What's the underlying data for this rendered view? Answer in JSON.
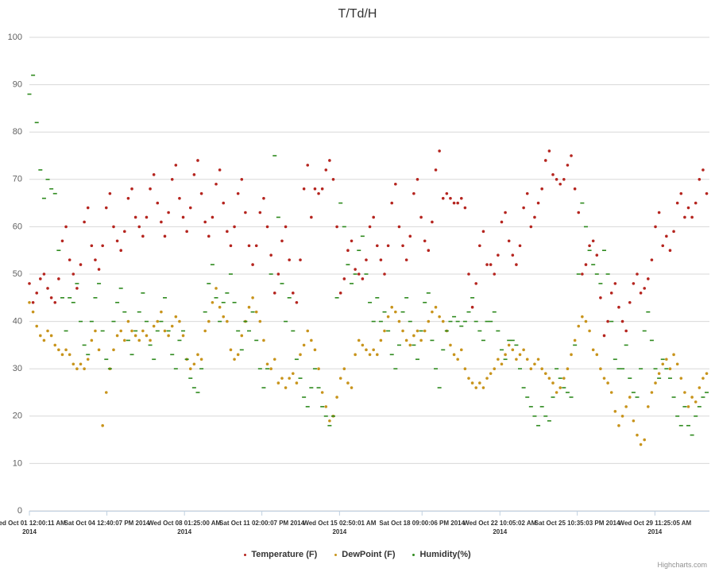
{
  "chart_data": {
    "type": "scatter",
    "title": "T/Td/H",
    "x": [
      "2014-10-01 00:00",
      "2014-10-01 04:00",
      "2014-10-01 08:00",
      "2014-10-01 12:00",
      "2014-10-01 16:00",
      "2014-10-01 20:00",
      "2014-10-02 00:00",
      "2014-10-02 04:00",
      "2014-10-02 08:00",
      "2014-10-02 12:00",
      "2014-10-02 16:00",
      "2014-10-02 20:00",
      "2014-10-03 00:00",
      "2014-10-03 04:00",
      "2014-10-03 08:00",
      "2014-10-03 12:00",
      "2014-10-03 16:00",
      "2014-10-03 20:00",
      "2014-10-04 00:00",
      "2014-10-04 04:00",
      "2014-10-04 08:00",
      "2014-10-04 12:00",
      "2014-10-04 16:00",
      "2014-10-04 20:00",
      "2014-10-05 00:00",
      "2014-10-05 04:00",
      "2014-10-05 08:00",
      "2014-10-05 12:00",
      "2014-10-05 16:00",
      "2014-10-05 20:00",
      "2014-10-06 00:00",
      "2014-10-06 04:00",
      "2014-10-06 08:00",
      "2014-10-06 12:00",
      "2014-10-06 16:00",
      "2014-10-06 20:00",
      "2014-10-07 00:00",
      "2014-10-07 04:00",
      "2014-10-07 08:00",
      "2014-10-07 12:00",
      "2014-10-07 16:00",
      "2014-10-07 20:00",
      "2014-10-08 00:00",
      "2014-10-08 04:00",
      "2014-10-08 08:00",
      "2014-10-08 12:00",
      "2014-10-08 16:00",
      "2014-10-08 20:00",
      "2014-10-09 00:00",
      "2014-10-09 04:00",
      "2014-10-09 08:00",
      "2014-10-09 12:00",
      "2014-10-09 16:00",
      "2014-10-09 20:00",
      "2014-10-10 00:00",
      "2014-10-10 04:00",
      "2014-10-10 08:00",
      "2014-10-10 12:00",
      "2014-10-10 16:00",
      "2014-10-10 20:00",
      "2014-10-11 00:00",
      "2014-10-11 04:00",
      "2014-10-11 08:00",
      "2014-10-11 12:00",
      "2014-10-11 16:00",
      "2014-10-11 20:00",
      "2014-10-12 00:00",
      "2014-10-12 04:00",
      "2014-10-12 08:00",
      "2014-10-12 12:00",
      "2014-10-12 16:00",
      "2014-10-12 20:00",
      "2014-10-13 00:00",
      "2014-10-13 04:00",
      "2014-10-13 08:00",
      "2014-10-13 12:00",
      "2014-10-13 16:00",
      "2014-10-13 20:00",
      "2014-10-14 00:00",
      "2014-10-14 04:00",
      "2014-10-14 08:00",
      "2014-10-14 12:00",
      "2014-10-14 16:00",
      "2014-10-14 20:00",
      "2014-10-15 00:00",
      "2014-10-15 04:00",
      "2014-10-15 08:00",
      "2014-10-15 12:00",
      "2014-10-15 16:00",
      "2014-10-15 20:00",
      "2014-10-16 00:00",
      "2014-10-16 04:00",
      "2014-10-16 08:00",
      "2014-10-16 12:00",
      "2014-10-16 16:00",
      "2014-10-16 20:00",
      "2014-10-17 00:00",
      "2014-10-17 04:00",
      "2014-10-17 08:00",
      "2014-10-17 12:00",
      "2014-10-17 16:00",
      "2014-10-17 20:00",
      "2014-10-18 00:00",
      "2014-10-18 04:00",
      "2014-10-18 08:00",
      "2014-10-18 12:00",
      "2014-10-18 16:00",
      "2014-10-18 20:00",
      "2014-10-19 00:00",
      "2014-10-19 04:00",
      "2014-10-19 08:00",
      "2014-10-19 12:00",
      "2014-10-19 16:00",
      "2014-10-19 20:00",
      "2014-10-20 00:00",
      "2014-10-20 04:00",
      "2014-10-20 08:00",
      "2014-10-20 12:00",
      "2014-10-20 16:00",
      "2014-10-20 20:00",
      "2014-10-21 00:00",
      "2014-10-21 04:00",
      "2014-10-21 08:00",
      "2014-10-21 12:00",
      "2014-10-21 16:00",
      "2014-10-21 20:00",
      "2014-10-22 00:00",
      "2014-10-22 04:00",
      "2014-10-22 08:00",
      "2014-10-22 12:00",
      "2014-10-22 16:00",
      "2014-10-22 20:00",
      "2014-10-23 00:00",
      "2014-10-23 04:00",
      "2014-10-23 08:00",
      "2014-10-23 12:00",
      "2014-10-23 16:00",
      "2014-10-23 20:00",
      "2014-10-24 00:00",
      "2014-10-24 04:00",
      "2014-10-24 08:00",
      "2014-10-24 12:00",
      "2014-10-24 16:00",
      "2014-10-24 20:00",
      "2014-10-25 00:00",
      "2014-10-25 04:00",
      "2014-10-25 08:00",
      "2014-10-25 12:00",
      "2014-10-25 16:00",
      "2014-10-25 20:00",
      "2014-10-26 00:00",
      "2014-10-26 04:00",
      "2014-10-26 08:00",
      "2014-10-26 12:00",
      "2014-10-26 16:00",
      "2014-10-26 20:00",
      "2014-10-27 00:00",
      "2014-10-27 04:00",
      "2014-10-27 08:00",
      "2014-10-27 12:00",
      "2014-10-27 16:00",
      "2014-10-27 20:00",
      "2014-10-28 00:00",
      "2014-10-28 04:00",
      "2014-10-28 08:00",
      "2014-10-28 12:00",
      "2014-10-28 16:00",
      "2014-10-28 20:00",
      "2014-10-29 00:00",
      "2014-10-29 04:00",
      "2014-10-29 08:00",
      "2014-10-29 12:00",
      "2014-10-29 16:00",
      "2014-10-29 20:00",
      "2014-10-30 00:00",
      "2014-10-30 04:00",
      "2014-10-30 08:00",
      "2014-10-30 12:00",
      "2014-10-30 16:00",
      "2014-10-30 20:00",
      "2014-10-31 00:00",
      "2014-10-31 04:00",
      "2014-10-31 08:00",
      "2014-10-31 12:00",
      "2014-10-31 16:00",
      "2014-10-31 20:00"
    ],
    "series": [
      {
        "name": "Temperature (F)",
        "color": "#b5251f",
        "marker": "circle",
        "values": [
          48,
          44,
          46,
          49,
          50,
          47,
          45,
          44,
          49,
          57,
          60,
          53,
          50,
          47,
          52,
          61,
          64,
          56,
          53,
          51,
          56,
          64,
          67,
          60,
          57,
          55,
          59,
          66,
          68,
          62,
          60,
          58,
          62,
          68,
          71,
          65,
          61,
          58,
          63,
          70,
          73,
          66,
          62,
          59,
          64,
          71,
          74,
          67,
          61,
          58,
          62,
          69,
          72,
          65,
          59,
          56,
          60,
          67,
          70,
          63,
          56,
          52,
          56,
          63,
          66,
          60,
          54,
          46,
          50,
          57,
          60,
          53,
          46,
          44,
          53,
          68,
          73,
          62,
          68,
          67,
          68,
          72,
          74,
          70,
          60,
          46,
          49,
          55,
          57,
          51,
          50,
          49,
          53,
          60,
          62,
          56,
          53,
          50,
          56,
          65,
          69,
          60,
          56,
          53,
          58,
          67,
          70,
          62,
          57,
          55,
          61,
          72,
          76,
          66,
          67,
          66,
          65,
          65,
          66,
          64,
          50,
          43,
          48,
          56,
          59,
          52,
          52,
          50,
          54,
          61,
          63,
          57,
          54,
          52,
          56,
          64,
          67,
          60,
          62,
          65,
          68,
          74,
          76,
          71,
          70,
          69,
          70,
          73,
          75,
          68,
          63,
          50,
          52,
          56,
          57,
          54,
          45,
          37,
          40,
          46,
          48,
          43,
          40,
          38,
          44,
          48,
          50,
          46,
          47,
          49,
          53,
          60,
          63,
          56,
          58,
          55,
          59,
          65,
          67,
          62,
          64,
          62,
          65,
          70,
          72,
          67
        ]
      },
      {
        "name": "DewPoint (F)",
        "color": "#c8941c",
        "marker": "circle",
        "values": [
          44,
          42,
          39,
          37,
          36,
          38,
          37,
          35,
          34,
          33,
          34,
          33,
          31,
          30,
          31,
          30,
          32,
          36,
          38,
          34,
          18,
          25,
          30,
          34,
          37,
          38,
          36,
          40,
          38,
          37,
          36,
          38,
          37,
          36,
          39,
          40,
          42,
          38,
          37,
          39,
          41,
          40,
          37,
          32,
          30,
          31,
          33,
          32,
          38,
          40,
          44,
          47,
          43,
          41,
          40,
          34,
          32,
          33,
          37,
          40,
          43,
          45,
          42,
          40,
          36,
          31,
          30,
          32,
          27,
          28,
          26,
          28,
          29,
          27,
          33,
          35,
          38,
          36,
          34,
          30,
          25,
          22,
          19,
          20,
          24,
          28,
          30,
          27,
          26,
          33,
          36,
          35,
          34,
          33,
          34,
          33,
          36,
          38,
          41,
          43,
          42,
          40,
          38,
          36,
          35,
          37,
          38,
          36,
          38,
          40,
          42,
          43,
          41,
          40,
          38,
          35,
          33,
          32,
          34,
          30,
          28,
          27,
          26,
          27,
          26,
          28,
          29,
          30,
          32,
          31,
          33,
          35,
          34,
          32,
          33,
          34,
          32,
          30,
          31,
          32,
          30,
          29,
          28,
          27,
          25,
          26,
          28,
          30,
          33,
          36,
          39,
          41,
          40,
          38,
          34,
          33,
          30,
          28,
          27,
          25,
          21,
          18,
          20,
          22,
          24,
          19,
          16,
          14,
          15,
          22,
          25,
          27,
          29,
          31,
          32,
          30,
          33,
          31,
          28,
          25,
          22,
          24,
          23,
          26,
          28,
          29
        ]
      },
      {
        "name": "Humidity(%)",
        "color": "#2e8a1e",
        "marker": "dash",
        "values": [
          88,
          92,
          82,
          72,
          66,
          70,
          68,
          67,
          55,
          45,
          38,
          45,
          44,
          48,
          40,
          35,
          33,
          40,
          45,
          48,
          38,
          32,
          30,
          40,
          44,
          47,
          42,
          36,
          33,
          38,
          42,
          46,
          40,
          35,
          32,
          38,
          40,
          45,
          38,
          33,
          30,
          36,
          38,
          32,
          28,
          26,
          25,
          30,
          42,
          48,
          52,
          45,
          40,
          44,
          46,
          50,
          44,
          38,
          34,
          40,
          38,
          42,
          36,
          30,
          26,
          30,
          50,
          75,
          62,
          48,
          40,
          45,
          38,
          32,
          28,
          24,
          22,
          26,
          30,
          26,
          22,
          20,
          18,
          20,
          45,
          65,
          60,
          52,
          48,
          50,
          55,
          58,
          50,
          44,
          40,
          45,
          40,
          42,
          38,
          33,
          30,
          35,
          42,
          45,
          40,
          35,
          32,
          38,
          44,
          46,
          36,
          30,
          26,
          34,
          38,
          40,
          41,
          40,
          39,
          40,
          42,
          45,
          40,
          38,
          36,
          40,
          40,
          42,
          38,
          34,
          32,
          36,
          36,
          35,
          30,
          26,
          24,
          22,
          20,
          18,
          22,
          20,
          19,
          24,
          30,
          28,
          26,
          25,
          24,
          35,
          50,
          65,
          60,
          55,
          52,
          50,
          48,
          55,
          50,
          40,
          32,
          30,
          30,
          35,
          28,
          25,
          24,
          30,
          38,
          42,
          36,
          30,
          28,
          32,
          30,
          28,
          24,
          20,
          18,
          22,
          18,
          16,
          20,
          22,
          24,
          25
        ]
      }
    ],
    "xlim": [
      "2014-10-01 00:00:11",
      "2014-10-31 23:00"
    ],
    "xticks": [
      {
        "value": "2014-10-01 00:00:11",
        "label": "Wed Oct 01 12:00:11 AM 2014"
      },
      {
        "value": "2014-10-04 12:40:07",
        "label": "Sat Oct 04 12:40:07 PM 2014"
      },
      {
        "value": "2014-10-08 01:25:00",
        "label": "Wed Oct 08 01:25:00 AM 2014"
      },
      {
        "value": "2014-10-11 14:00:07",
        "label": "Sat Oct 11 02:00:07 PM 2014"
      },
      {
        "value": "2014-10-15 02:50:01",
        "label": "Wed Oct 15 02:50:01 AM 2014"
      },
      {
        "value": "2014-10-18 21:00:06",
        "label": "Sat Oct 18 09:00:06 PM 2014"
      },
      {
        "value": "2014-10-22 10:05:02",
        "label": "Wed Oct 22 10:05:02 AM 2014"
      },
      {
        "value": "2014-10-25 22:35:03",
        "label": "Sat Oct 25 10:35:03 PM 2014"
      },
      {
        "value": "2014-10-29 11:25:05",
        "label": "Wed Oct 29 11:25:05 AM 2014"
      }
    ],
    "ylim": [
      0,
      100
    ],
    "yticks": [
      0,
      10,
      20,
      30,
      40,
      50,
      60,
      70,
      80,
      90,
      100
    ],
    "grid": true,
    "legend": "bottom",
    "credits": "Highcharts.com"
  }
}
